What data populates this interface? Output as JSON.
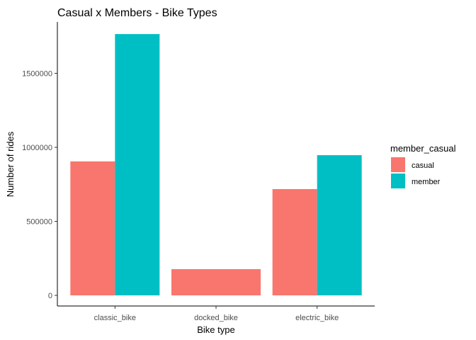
{
  "chart_data": {
    "type": "bar",
    "title": "Casual x Members - Bike Types",
    "xlabel": "Bike type",
    "ylabel": "Number of rides",
    "categories": [
      "classic_bike",
      "docked_bike",
      "electric_bike"
    ],
    "series": [
      {
        "name": "casual",
        "color": "#F8766D",
        "values": [
          905000,
          177000,
          718000
        ]
      },
      {
        "name": "member",
        "color": "#00BFC4",
        "values": [
          1765000,
          0,
          947000
        ]
      }
    ],
    "ylim": [
      0,
      1800000
    ],
    "yticks": [
      0,
      500000,
      1000000,
      1500000
    ],
    "ytick_labels": [
      "0",
      "500000",
      "1000000",
      "1500000"
    ],
    "grid": false,
    "legend": {
      "title": "member_casual",
      "position": "right"
    }
  }
}
